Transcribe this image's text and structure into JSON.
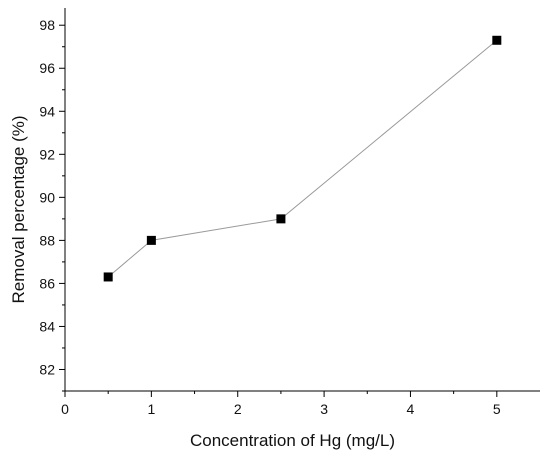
{
  "chart_data": {
    "type": "line",
    "title": "",
    "xlabel": "Concentration of Hg (mg/L)",
    "ylabel": "Removal percentage (%)",
    "xlim": [
      0,
      5.5
    ],
    "ylim": [
      81,
      98.8
    ],
    "x_ticks": [
      0,
      1,
      2,
      3,
      4,
      5
    ],
    "y_ticks": [
      82,
      84,
      86,
      88,
      90,
      92,
      94,
      96,
      98
    ],
    "grid": false,
    "legend": "none",
    "marker": "square",
    "colors": {
      "marker": "#000000",
      "line": "#9a9a9a",
      "axis": "#000000"
    },
    "series": [
      {
        "x": [
          0.5,
          1,
          2.5,
          5
        ],
        "y": [
          86.3,
          88.0,
          89.0,
          97.3
        ]
      }
    ]
  }
}
